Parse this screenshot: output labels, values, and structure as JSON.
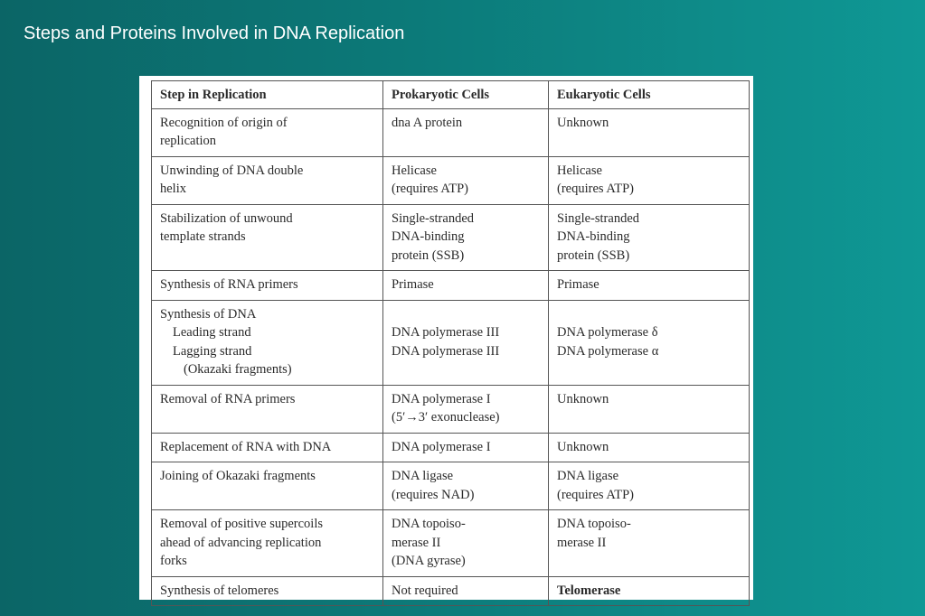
{
  "slide": {
    "title": "Steps and Proteins Involved in DNA Replication"
  },
  "table": {
    "headers": {
      "step": "Step in Replication",
      "prokaryotic": "Prokaryotic Cells",
      "eukaryotic": "Eukaryotic Cells"
    },
    "rows": [
      {
        "step": [
          "Recognition of origin of",
          "replication"
        ],
        "prokaryotic": [
          "dna A protein"
        ],
        "eukaryotic": [
          "Unknown"
        ]
      },
      {
        "step": [
          "Unwinding of DNA double",
          "helix"
        ],
        "prokaryotic": [
          "Helicase",
          "(requires ATP)"
        ],
        "eukaryotic": [
          "Helicase",
          "(requires ATP)"
        ]
      },
      {
        "step": [
          "Stabilization of unwound",
          "template strands"
        ],
        "prokaryotic": [
          "Single-stranded",
          "DNA-binding",
          "protein (SSB)"
        ],
        "eukaryotic": [
          "Single-stranded",
          "DNA-binding",
          "protein (SSB)"
        ]
      },
      {
        "step": [
          "Synthesis of RNA primers"
        ],
        "prokaryotic": [
          "Primase"
        ],
        "eukaryotic": [
          "Primase"
        ]
      },
      {
        "step": [
          "Synthesis of DNA",
          "Leading strand",
          "Lagging strand",
          "(Okazaki fragments)"
        ],
        "prokaryotic": [
          "DNA polymerase III",
          "DNA polymerase III"
        ],
        "eukaryotic": [
          "DNA polymerase δ",
          "DNA polymerase α"
        ]
      },
      {
        "step": [
          "Removal of RNA primers"
        ],
        "prokaryotic": [
          "DNA polymerase I",
          "(5′→3′ exonuclease)"
        ],
        "eukaryotic": [
          "Unknown"
        ]
      },
      {
        "step": [
          "Replacement of RNA with DNA"
        ],
        "prokaryotic": [
          "DNA polymerase I"
        ],
        "eukaryotic": [
          "Unknown"
        ]
      },
      {
        "step": [
          "Joining of Okazaki fragments"
        ],
        "prokaryotic": [
          "DNA ligase",
          "(requires NAD)"
        ],
        "eukaryotic": [
          "DNA ligase",
          "(requires ATP)"
        ]
      },
      {
        "step": [
          "Removal of positive supercoils",
          "ahead of advancing replication",
          "forks"
        ],
        "prokaryotic": [
          "DNA topoiso-",
          "merase II",
          "(DNA gyrase)"
        ],
        "eukaryotic": [
          "DNA topoiso-",
          "merase II"
        ]
      },
      {
        "step": [
          "Synthesis of telomeres"
        ],
        "prokaryotic": [
          "Not required"
        ],
        "eukaryotic": [
          "Telomerase"
        ]
      }
    ]
  }
}
